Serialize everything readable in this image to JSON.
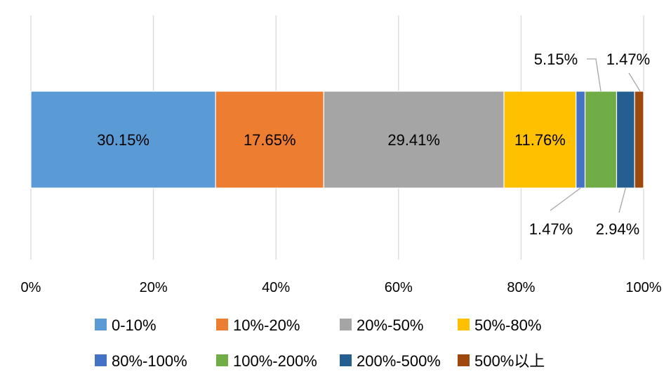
{
  "chart_data": {
    "type": "bar",
    "orientation": "horizontal",
    "stacked": "percent",
    "categories": [
      ""
    ],
    "series": [
      {
        "name": "0-10%",
        "values": [
          30.15
        ],
        "color": "#5B9BD5",
        "label": "30.15%"
      },
      {
        "name": "10%-20%",
        "values": [
          17.65
        ],
        "color": "#ED7D31",
        "label": "17.65%"
      },
      {
        "name": "20%-50%",
        "values": [
          29.41
        ],
        "color": "#A5A5A5",
        "label": "29.41%"
      },
      {
        "name": "50%-80%",
        "values": [
          11.76
        ],
        "color": "#FFC000",
        "label": "11.76%"
      },
      {
        "name": "80%-100%",
        "values": [
          1.47
        ],
        "color": "#4472C4",
        "label": "1.47%"
      },
      {
        "name": "100%-200%",
        "values": [
          5.15
        ],
        "color": "#70AD47",
        "label": "5.15%"
      },
      {
        "name": "200%-500%",
        "values": [
          2.94
        ],
        "color": "#255E91",
        "label": "2.94%"
      },
      {
        "name": "500%以上",
        "values": [
          1.47
        ],
        "color": "#9E480E",
        "label": "1.47%"
      }
    ],
    "x_ticks": [
      "0%",
      "20%",
      "40%",
      "60%",
      "80%",
      "100%"
    ],
    "xlim": [
      0,
      100
    ],
    "grid": "vertical",
    "legend": "bottom"
  }
}
